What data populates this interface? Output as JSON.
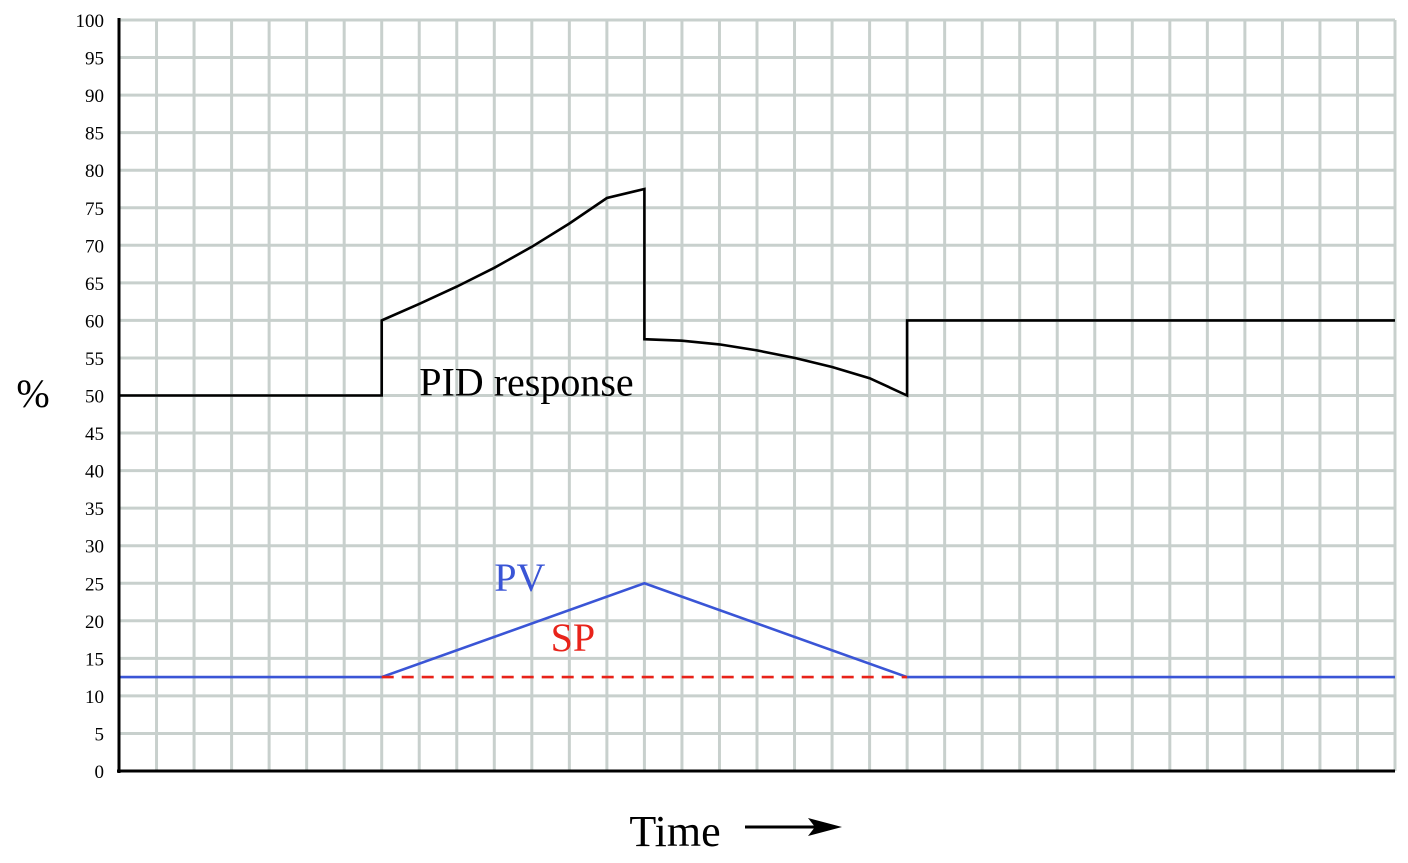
{
  "chart_data": {
    "type": "line",
    "xlabel": "Time",
    "ylabel": "%",
    "ylim": [
      0,
      100
    ],
    "y_ticks": [
      "0",
      "5",
      "10",
      "15",
      "20",
      "25",
      "30",
      "35",
      "40",
      "45",
      "50",
      "55",
      "60",
      "65",
      "70",
      "75",
      "80",
      "85",
      "90",
      "95",
      "100"
    ],
    "x_ticks_labeled": false,
    "xlim": [
      0,
      34
    ],
    "grid": true,
    "series": [
      {
        "name": "PID response",
        "color": "#000000",
        "dash": "solid",
        "x": [
          0,
          7,
          7,
          8,
          9,
          10,
          11,
          12,
          13,
          14,
          14,
          15,
          16,
          17,
          18,
          19,
          20,
          21,
          21,
          34
        ],
        "y": [
          50,
          50,
          60,
          62.2,
          64.5,
          67,
          69.8,
          72.9,
          76.3,
          77.5,
          57.5,
          57.3,
          56.8,
          56,
          55,
          53.8,
          52.3,
          50,
          60,
          60
        ]
      },
      {
        "name": "PV",
        "color": "#3a55d6",
        "dash": "solid",
        "x": [
          0,
          7,
          14,
          21,
          34
        ],
        "y": [
          12.5,
          12.5,
          25,
          12.5,
          12.5
        ]
      },
      {
        "name": "SP",
        "color": "#e8231a",
        "dash": "dashed",
        "x": [
          7,
          21
        ],
        "y": [
          12.5,
          12.5
        ]
      }
    ],
    "annotations": [
      {
        "text": "PID response",
        "color": "#000000",
        "x": 8,
        "y": 50
      },
      {
        "text": "PV",
        "color": "#3a55d6",
        "x": 10,
        "y": 24
      },
      {
        "text": "SP",
        "color": "#e8231a",
        "x": 11.5,
        "y": 16
      }
    ],
    "colors": {
      "grid": "#c8d0cd",
      "axis": "#000000",
      "arrow": "#000000"
    }
  }
}
